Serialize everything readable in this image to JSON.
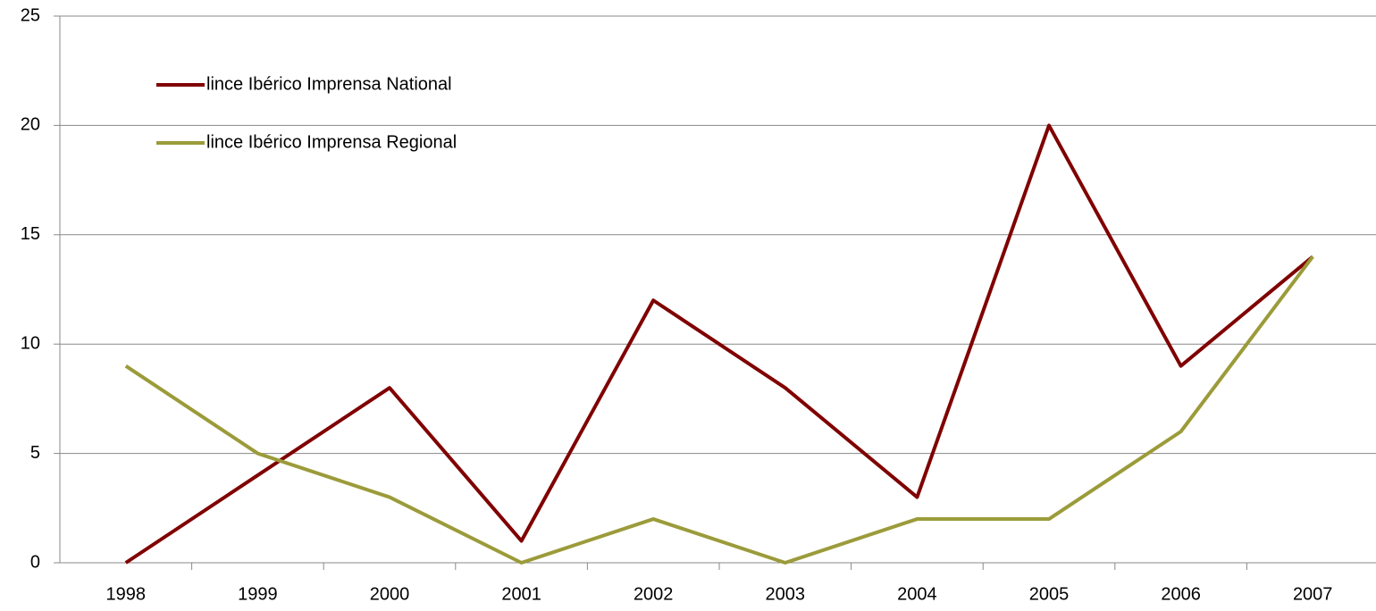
{
  "chart_data": {
    "type": "line",
    "categories": [
      "1998",
      "1999",
      "2000",
      "2001",
      "2002",
      "2003",
      "2004",
      "2005",
      "2006",
      "2007"
    ],
    "series": [
      {
        "name": "lince Ibérico Imprensa National",
        "color": "#800000",
        "values": [
          0,
          4,
          8,
          1,
          12,
          8,
          3,
          20,
          9,
          14
        ]
      },
      {
        "name": "lince Ibérico Imprensa Regional",
        "color": "#9b9b3a",
        "values": [
          9,
          5,
          3,
          0,
          2,
          0,
          2,
          2,
          6,
          14
        ]
      }
    ],
    "ylim": [
      0,
      25
    ],
    "yticks": [
      0,
      5,
      10,
      15,
      20,
      25
    ],
    "grid": true,
    "legend": "upper left"
  }
}
